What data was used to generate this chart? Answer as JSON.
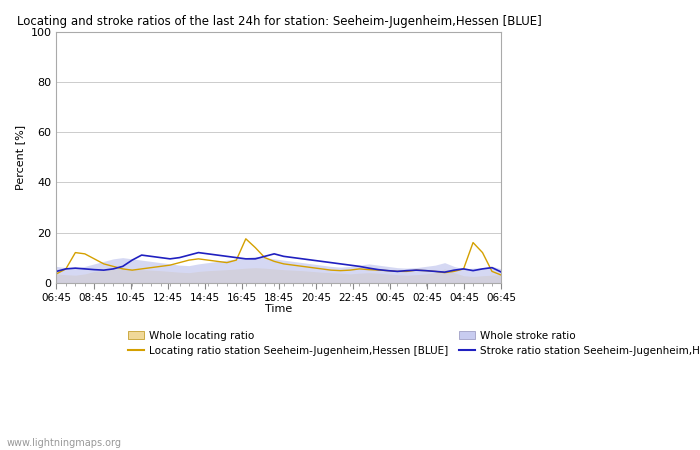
{
  "title": "Locating and stroke ratios of the last 24h for station: Seeheim-Jugenheim,Hessen [BLUE]",
  "ylabel": "Percent [%]",
  "xlabel": "Time",
  "ylim": [
    0,
    100
  ],
  "yticks": [
    0,
    20,
    40,
    60,
    80,
    100
  ],
  "xtick_labels": [
    "06:45",
    "08:45",
    "10:45",
    "12:45",
    "14:45",
    "16:45",
    "18:45",
    "20:45",
    "22:45",
    "00:45",
    "02:45",
    "04:45",
    "06:45"
  ],
  "watermark": "www.lightningmaps.org",
  "whole_locating_color": "#f0d898",
  "whole_stroke_color": "#c8ccf0",
  "locating_line_color": "#d4a000",
  "stroke_line_color": "#2020c0",
  "background_color": "#ffffff",
  "grid_color": "#cccccc",
  "whole_locating": [
    3.5,
    3.2,
    3.0,
    3.5,
    4.5,
    5.0,
    5.5,
    5.8,
    5.5,
    5.2,
    5.0,
    4.8,
    4.5,
    4.2,
    4.0,
    4.5,
    4.8,
    5.0,
    5.2,
    5.5,
    5.8,
    6.0,
    5.8,
    5.5,
    5.2,
    5.0,
    4.8,
    4.5,
    4.2,
    4.0,
    3.8,
    3.5,
    3.8,
    4.0,
    3.8,
    3.5,
    3.2,
    3.0,
    3.2,
    3.5,
    4.0,
    5.5,
    4.0,
    2.8,
    2.5,
    2.8,
    3.0,
    3.2
  ],
  "whole_stroke": [
    6.5,
    6.0,
    5.8,
    6.5,
    7.5,
    8.5,
    9.5,
    10.0,
    9.5,
    9.0,
    8.5,
    8.0,
    7.5,
    7.0,
    6.8,
    7.5,
    8.0,
    8.5,
    9.0,
    9.5,
    10.0,
    10.5,
    10.0,
    9.5,
    9.0,
    8.5,
    8.0,
    7.5,
    7.0,
    6.5,
    6.2,
    6.5,
    7.0,
    7.5,
    7.0,
    6.5,
    6.0,
    5.8,
    6.0,
    6.5,
    7.0,
    8.0,
    6.5,
    5.5,
    5.8,
    6.0,
    6.5,
    5.5
  ],
  "locating_station": [
    3.5,
    5.5,
    12.0,
    11.5,
    9.5,
    7.5,
    6.5,
    5.5,
    5.0,
    5.5,
    6.0,
    6.5,
    7.0,
    8.0,
    9.0,
    9.5,
    9.0,
    8.5,
    8.0,
    9.0,
    17.5,
    14.0,
    10.0,
    8.5,
    7.5,
    7.0,
    6.5,
    6.0,
    5.5,
    5.0,
    4.8,
    5.0,
    5.5,
    5.2,
    5.0,
    4.8,
    4.5,
    4.5,
    5.0,
    4.8,
    4.5,
    4.0,
    4.5,
    5.5,
    16.0,
    12.0,
    4.5,
    3.0
  ],
  "stroke_station": [
    4.5,
    5.5,
    5.8,
    5.5,
    5.2,
    5.0,
    5.5,
    6.5,
    9.0,
    11.0,
    10.5,
    10.0,
    9.5,
    10.0,
    11.0,
    12.0,
    11.5,
    11.0,
    10.5,
    10.0,
    9.5,
    9.5,
    10.5,
    11.5,
    10.5,
    10.0,
    9.5,
    9.0,
    8.5,
    8.0,
    7.5,
    7.0,
    6.5,
    5.8,
    5.2,
    4.8,
    4.5,
    4.8,
    5.0,
    4.8,
    4.5,
    4.2,
    5.0,
    5.5,
    4.8,
    5.5,
    6.0,
    4.2
  ]
}
